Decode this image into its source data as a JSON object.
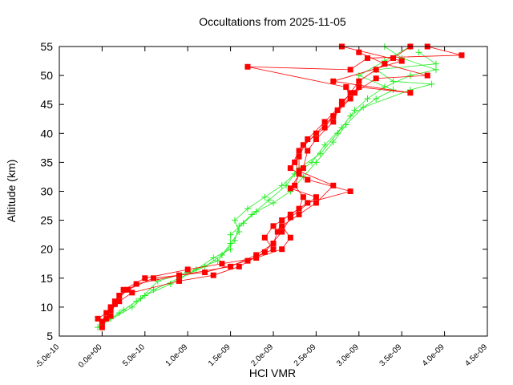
{
  "chart_data": {
    "type": "line",
    "title": "Occultations from 2025-11-05",
    "xlabel": "HCl VMR",
    "ylabel": "Altitude (km)",
    "xlim": [
      -5e-10,
      4.5e-09
    ],
    "ylim": [
      5,
      55
    ],
    "xticks": [
      {
        "value": -5e-10,
        "label": "-5.0e-10"
      },
      {
        "value": 0,
        "label": "0.0e+00"
      },
      {
        "value": 5e-10,
        "label": "5.0e-10"
      },
      {
        "value": 1e-09,
        "label": "1.0e-09"
      },
      {
        "value": 1.5e-09,
        "label": "1.5e-09"
      },
      {
        "value": 2e-09,
        "label": "2.0e-09"
      },
      {
        "value": 2.5e-09,
        "label": "2.5e-09"
      },
      {
        "value": 3e-09,
        "label": "3.0e-09"
      },
      {
        "value": 3.5e-09,
        "label": "3.5e-09"
      },
      {
        "value": 4e-09,
        "label": "4.0e-09"
      },
      {
        "value": 4.5e-09,
        "label": "4.5e-09"
      }
    ],
    "yticks": [
      5,
      10,
      15,
      20,
      25,
      30,
      35,
      40,
      45,
      50,
      55
    ],
    "grid": false,
    "series": [
      {
        "color": "#22ee22",
        "marker": "plus",
        "x": [
          -5e-11,
          2e-10,
          4e-10,
          6e-10,
          9e-10,
          1.2e-09,
          1.4e-09,
          1.5e-09,
          1.6e-09,
          1.55e-09,
          1.7e-09,
          1.9e-09,
          2.1e-09,
          2.25e-09,
          2.45e-09,
          2.6e-09,
          2.8e-09,
          2.95e-09,
          3.1e-09,
          3.3e-09,
          3.6e-09,
          3.9e-09,
          3.5e-09,
          3.3e-09
        ],
        "values": [
          6.5,
          9,
          11,
          13,
          15,
          17,
          19,
          21,
          23,
          25,
          27,
          29,
          31,
          33,
          35,
          38,
          41,
          44,
          46,
          48,
          50,
          51,
          53,
          55
        ]
      },
      {
        "color": "#22ee22",
        "marker": "plus",
        "x": [
          0,
          3.5e-10,
          5e-10,
          8e-10,
          1.1e-09,
          1.3e-09,
          1.5e-09,
          1.5e-09,
          1.65e-09,
          1.8e-09,
          2e-09,
          2.2e-09,
          2.35e-09,
          2.5e-09,
          2.7e-09,
          2.85e-09,
          3.05e-09,
          3.6e-09,
          3.85e-09,
          3.4e-09,
          3.2e-09,
          3.9e-09,
          3.7e-09
        ],
        "values": [
          7,
          10,
          12,
          14,
          16.5,
          18.5,
          20,
          22.5,
          24.5,
          26.5,
          28,
          30,
          32.5,
          35,
          38.5,
          41.5,
          44.5,
          47.5,
          48.5,
          49,
          51,
          52,
          54
        ]
      },
      {
        "color": "#22ee22",
        "marker": "plus",
        "x": [
          1e-10,
          2.5e-10,
          4.5e-10,
          6.5e-10,
          1e-09,
          1.35e-09,
          1.55e-09,
          1.6e-09,
          1.75e-09,
          1.95e-09,
          2.15e-09,
          2.3e-09,
          2.55e-09,
          2.75e-09,
          2.9e-09,
          3.2e-09,
          3.4e-09,
          3e-09,
          3.3e-09,
          3.6e-09
        ],
        "values": [
          8,
          9.5,
          11.5,
          14.5,
          16,
          18,
          21.5,
          24,
          26,
          28.5,
          31,
          34,
          36.5,
          40,
          43,
          46,
          47.5,
          50,
          52.5,
          55
        ]
      },
      {
        "color": "#ff0000",
        "marker": "square",
        "x": [
          0,
          5e-11,
          1e-10,
          2e-10,
          4e-10,
          9e-10,
          1.5e-09,
          1.8e-09,
          2e-09,
          2.05e-09,
          2.1e-09,
          2.3e-09,
          2.35e-09,
          2.25e-09,
          2.3e-09,
          2.3e-09,
          2.4e-09,
          2.6e-09,
          2.8e-09,
          2.9e-09,
          3e-09,
          3.2e-09,
          3.4e-09,
          3.6e-09
        ],
        "values": [
          6.5,
          8,
          10,
          12,
          14,
          15.5,
          17,
          19,
          21,
          23,
          25,
          27,
          29,
          31,
          33,
          36,
          39,
          42,
          45,
          47,
          49,
          51,
          53,
          55
        ]
      },
      {
        "color": "#ff0000",
        "marker": "square",
        "x": [
          -5e-11,
          1e-10,
          1.5e-10,
          3e-10,
          6e-10,
          1.2e-09,
          1.7e-09,
          2e-09,
          1.9e-09,
          2e-09,
          2.2e-09,
          2.4e-09,
          2.9e-09,
          2.4e-09,
          2.2e-09,
          2.3e-09,
          2.5e-09,
          2.7e-09,
          2.9e-09,
          2.85e-09,
          1.7e-09,
          2.9e-09,
          3.1e-09,
          4.2e-09,
          3.8e-09
        ],
        "values": [
          8,
          9.5,
          11,
          13,
          15,
          16,
          18,
          20,
          22,
          24,
          26,
          28,
          30,
          32,
          34,
          37,
          40,
          43,
          46,
          48,
          51.5,
          51,
          53,
          53.5,
          55
        ]
      },
      {
        "color": "#ff0000",
        "marker": "square",
        "x": [
          0,
          5e-11,
          2e-10,
          2.5e-10,
          5e-10,
          1e-09,
          1.4e-09,
          1.8e-09,
          2.1e-09,
          2.2e-09,
          2.1e-09,
          2.3e-09,
          2.5e-09,
          2.7e-09,
          2.3e-09,
          2.25e-09,
          2.35e-09,
          2.6e-09,
          2.75e-09,
          2.95e-09,
          3.2e-09,
          3.8e-09,
          3.3e-09,
          3e-09
        ],
        "values": [
          7.5,
          9,
          11,
          13,
          15,
          16.5,
          17.5,
          18.5,
          20,
          22,
          24,
          26,
          28,
          31,
          33.5,
          35,
          38,
          41,
          44,
          47,
          49.5,
          50,
          52,
          54
        ]
      },
      {
        "color": "#ff0000",
        "marker": "square",
        "x": [
          1e-10,
          1.5e-10,
          3.5e-10,
          9e-10,
          1.3e-09,
          1.6e-09,
          1.9e-09,
          2.1e-09,
          2.2e-09,
          2.5e-09,
          2.2e-09,
          2.35e-09,
          2.4e-09,
          2.5e-09,
          2.7e-09,
          2.8e-09,
          3e-09,
          3.6e-09,
          2.7e-09,
          3.5e-09,
          2.8e-09
        ],
        "values": [
          8.5,
          10.5,
          12.5,
          14.5,
          15.5,
          17,
          19.5,
          23,
          25.5,
          29,
          30.5,
          34,
          37,
          39,
          42,
          45.5,
          48,
          47,
          49,
          52.5,
          55
        ]
      }
    ]
  }
}
